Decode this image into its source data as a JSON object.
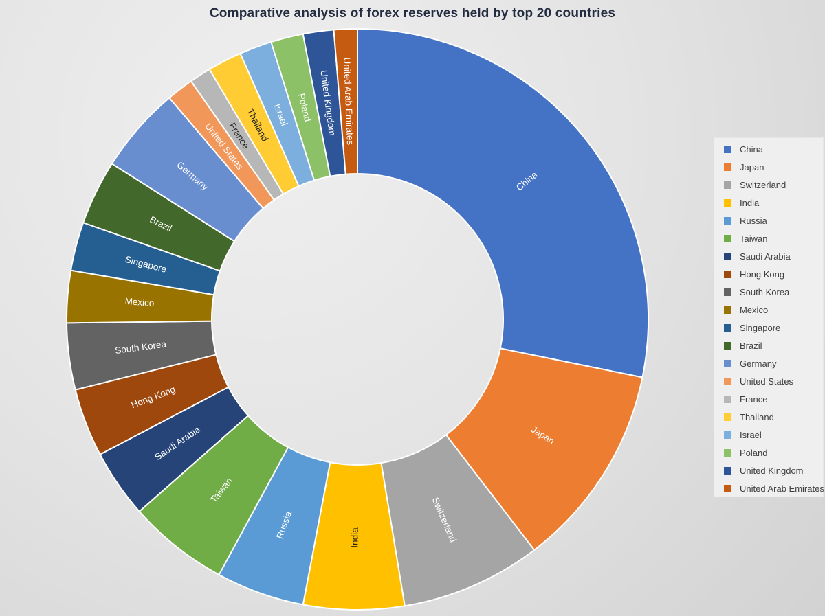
{
  "title": "Comparative analysis of forex reserves held by top 20 countries",
  "chart_data": {
    "type": "pie",
    "subtype": "donut",
    "title": "Comparative analysis of forex reserves held by top 20 countries",
    "inner_radius_ratio": 0.5,
    "start_angle_deg": 0,
    "direction": "clockwise",
    "grid": false,
    "legend_position": "right",
    "values_are": "percent share of ring, measured from slice angles",
    "series": [
      {
        "name": "China",
        "share_pct": 28.2,
        "color": "#4472C4",
        "label_color": "#FFFFFF"
      },
      {
        "name": "Japan",
        "share_pct": 11.4,
        "color": "#ED7D31",
        "label_color": "#FFFFFF"
      },
      {
        "name": "Switzerland",
        "share_pct": 7.8,
        "color": "#A5A5A5",
        "label_color": "#FFFFFF"
      },
      {
        "name": "India",
        "share_pct": 5.6,
        "color": "#FFC000",
        "label_color": "#1F1F1F"
      },
      {
        "name": "Russia",
        "share_pct": 4.9,
        "color": "#5B9BD5",
        "label_color": "#FFFFFF"
      },
      {
        "name": "Taiwan",
        "share_pct": 5.6,
        "color": "#70AD47",
        "label_color": "#FFFFFF"
      },
      {
        "name": "Saudi Arabia",
        "share_pct": 3.8,
        "color": "#264478",
        "label_color": "#FFFFFF"
      },
      {
        "name": "Hong Kong",
        "share_pct": 3.8,
        "color": "#9E480E",
        "label_color": "#FFFFFF"
      },
      {
        "name": "South Korea",
        "share_pct": 3.7,
        "color": "#636363",
        "label_color": "#FFFFFF"
      },
      {
        "name": "Mexico",
        "share_pct": 2.9,
        "color": "#997300",
        "label_color": "#FFFFFF"
      },
      {
        "name": "Singapore",
        "share_pct": 2.7,
        "color": "#255E91",
        "label_color": "#FFFFFF"
      },
      {
        "name": "Brazil",
        "share_pct": 3.6,
        "color": "#43682B",
        "label_color": "#FFFFFF"
      },
      {
        "name": "Germany",
        "share_pct": 4.8,
        "color": "#698ED0",
        "label_color": "#FFFFFF"
      },
      {
        "name": "United States",
        "share_pct": 1.5,
        "color": "#F1975A",
        "label_color": "#FFFFFF"
      },
      {
        "name": "France",
        "share_pct": 1.2,
        "color": "#B7B7B7",
        "label_color": "#262626"
      },
      {
        "name": "Thailand",
        "share_pct": 1.9,
        "color": "#FFCD33",
        "label_color": "#1F1F1F"
      },
      {
        "name": "Israel",
        "share_pct": 1.8,
        "color": "#7CAFDD",
        "label_color": "#FFFFFF"
      },
      {
        "name": "Poland",
        "share_pct": 1.8,
        "color": "#8CC168",
        "label_color": "#FFFFFF"
      },
      {
        "name": "United Kingdom",
        "share_pct": 1.7,
        "color": "#2E5597",
        "label_color": "#FFFFFF"
      },
      {
        "name": "United Arab Emirates",
        "share_pct": 1.3,
        "color": "#C55A11",
        "label_color": "#FFFFFF"
      }
    ]
  }
}
